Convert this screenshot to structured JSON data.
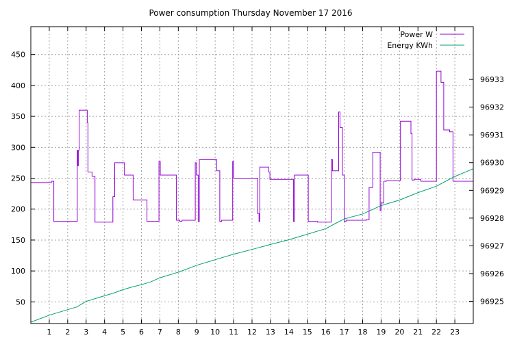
{
  "chart_data": {
    "type": "line",
    "title": "Power consumption Thursday November 17 2016",
    "xlabel": "",
    "ylabel": "",
    "y2label": "",
    "xlim": [
      0,
      24
    ],
    "ylim": [
      15,
      495
    ],
    "y2lim": [
      96924.2,
      96934.9
    ],
    "x_ticks": [
      1,
      2,
      3,
      4,
      5,
      6,
      7,
      8,
      9,
      10,
      11,
      12,
      13,
      14,
      15,
      16,
      17,
      18,
      19,
      20,
      21,
      22,
      23
    ],
    "y_ticks": [
      50,
      100,
      150,
      200,
      250,
      300,
      350,
      400,
      450
    ],
    "y2_ticks": [
      96925,
      96926,
      96927,
      96928,
      96929,
      96930,
      96931,
      96932,
      96933
    ],
    "grid": true,
    "legend": "top-right",
    "series": [
      {
        "name": "Power W",
        "axis": "left",
        "color": "#9400d3",
        "step": true,
        "x": [
          0,
          1.12,
          1.25,
          2.52,
          2.55,
          2.58,
          2.62,
          2.66,
          3.06,
          3.1,
          3.17,
          3.32,
          3.48,
          4.4,
          4.45,
          4.55,
          5.02,
          5.08,
          5.55,
          6.3,
          6.55,
          6.95,
          7.02,
          7.9,
          8.08,
          8.2,
          8.92,
          8.98,
          9.08,
          9.14,
          10.02,
          10.08,
          10.25,
          10.35,
          10.42,
          10.95,
          11.0,
          12.3,
          12.38,
          12.42,
          12.6,
          12.9,
          12.97,
          14.25,
          14.3,
          14.88,
          15.05,
          15.55,
          15.65,
          16.3,
          16.36,
          16.7,
          16.77,
          16.9,
          17.0,
          17.1,
          18.2,
          18.3,
          18.35,
          18.55,
          18.85,
          18.95,
          19.0,
          19.15,
          19.28,
          20.05,
          20.1,
          20.62,
          20.68,
          20.8,
          21.15,
          22.0,
          22.08,
          22.25,
          22.4,
          22.65,
          22.72,
          22.9,
          22.95,
          24
        ],
        "y": [
          243,
          245,
          180,
          295,
          270,
          295,
          360,
          360,
          340,
          260,
          260,
          253,
          179,
          179,
          220,
          275,
          275,
          255,
          215,
          180,
          180,
          277,
          255,
          182,
          180,
          182,
          275,
          255,
          180,
          280,
          280,
          262,
          180,
          182,
          182,
          277,
          250,
          193,
          180,
          268,
          268,
          260,
          248,
          180,
          255,
          255,
          180,
          179,
          179,
          280,
          262,
          357,
          332,
          255,
          180,
          182,
          183,
          183,
          235,
          292,
          292,
          198,
          210,
          245,
          246,
          342,
          342,
          322,
          247,
          248,
          245,
          423,
          423,
          405,
          328,
          328,
          325,
          245,
          245,
          245
        ]
      },
      {
        "name": "Energy KWh",
        "axis": "right",
        "color": "#009e73",
        "step": false,
        "x": [
          0,
          1,
          2,
          2.5,
          3,
          3.5,
          4,
          4.5,
          5,
          5.5,
          6,
          6.5,
          7,
          8,
          9,
          10,
          11,
          12,
          13,
          14,
          15,
          16,
          16.5,
          17,
          18,
          18.5,
          19,
          20,
          21,
          22,
          23,
          24
        ],
        "y": [
          96924.25,
          96924.5,
          96924.7,
          96924.8,
          96925.0,
          96925.1,
          96925.2,
          96925.3,
          96925.42,
          96925.52,
          96925.6,
          96925.7,
          96925.85,
          96926.05,
          96926.3,
          96926.5,
          96926.7,
          96926.87,
          96927.05,
          96927.22,
          96927.42,
          96927.62,
          96927.8,
          96927.97,
          96928.15,
          96928.3,
          96928.45,
          96928.65,
          96928.92,
          96929.15,
          96929.5,
          96929.78
        ]
      }
    ]
  }
}
